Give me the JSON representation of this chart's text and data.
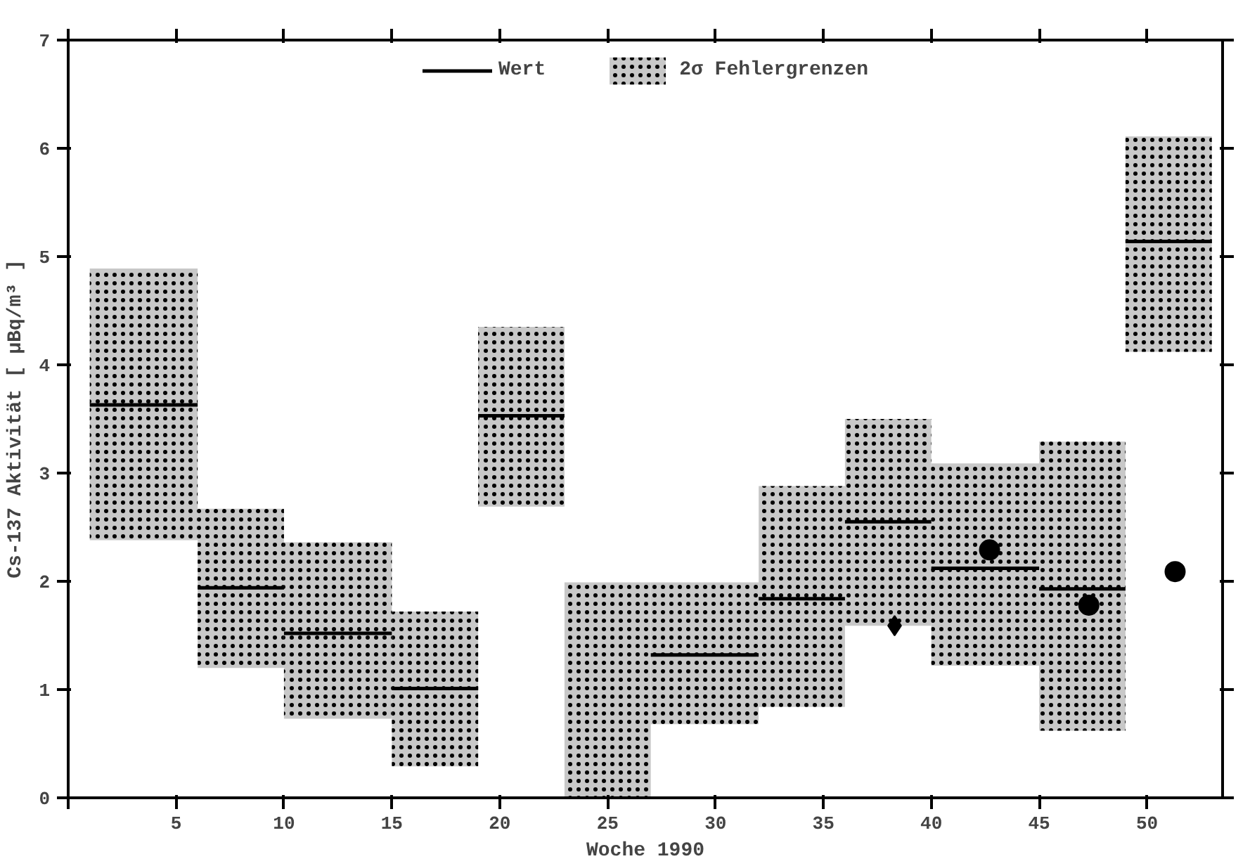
{
  "chart_data": {
    "type": "histogram",
    "xlabel": "Woche 1990",
    "ylabel": "Cs-137 Aktivität [ µBq/m³ ]",
    "xlim": [
      0,
      53.5
    ],
    "ylim": [
      0,
      7
    ],
    "xticks": [
      {
        "value": 0,
        "label": null
      },
      5,
      10,
      15,
      20,
      25,
      30,
      35,
      40,
      45,
      50
    ],
    "yticks": [
      0,
      1,
      2,
      3,
      4,
      5,
      6,
      7
    ],
    "legend": "top",
    "grid": false,
    "bins": [
      1,
      6,
      10,
      15,
      19,
      23,
      27,
      32,
      36,
      40,
      45,
      49,
      53
    ],
    "series": [
      {
        "name": "2σ Fehlergrenzen",
        "color": "#c8c8c8",
        "base": [
          2.38,
          1.2,
          0.73,
          0.29,
          2.69,
          0,
          0.68,
          0.84,
          1.59,
          1.22,
          0.62,
          4.12
        ],
        "values": [
          2.51,
          1.47,
          1.63,
          1.43,
          1.66,
          1.99,
          1.31,
          2.04,
          1.91,
          1.87,
          2.67,
          1.99
        ]
      },
      {
        "name": "Wert",
        "type": "line",
        "color": "#000000",
        "x": [
          1,
          6,
          null,
          6,
          10,
          null,
          10,
          15,
          null,
          15,
          19,
          null,
          19,
          23,
          null,
          27,
          32,
          null,
          32,
          36,
          null,
          36,
          40,
          null,
          40,
          45,
          null,
          45,
          49,
          null,
          49,
          53
        ],
        "values": [
          3.63,
          3.63,
          null,
          1.94,
          1.94,
          null,
          1.52,
          1.52,
          null,
          1.01,
          1.01,
          null,
          3.53,
          3.53,
          null,
          1.32,
          1.32,
          null,
          1.84,
          1.84,
          null,
          2.55,
          2.55,
          null,
          2.12,
          2.12,
          null,
          1.93,
          1.93,
          null,
          5.14,
          5.14
        ]
      },
      {
        "type": "scatter",
        "marker": "diamond",
        "color": "#000000",
        "x": [
          38.3
        ],
        "values": [
          1.59
        ]
      },
      {
        "type": "scatter",
        "marker": "circle",
        "color": "#000000",
        "x": [
          42.7,
          47.3,
          51.3
        ],
        "values": [
          2.29,
          1.78,
          2.09
        ]
      }
    ]
  }
}
